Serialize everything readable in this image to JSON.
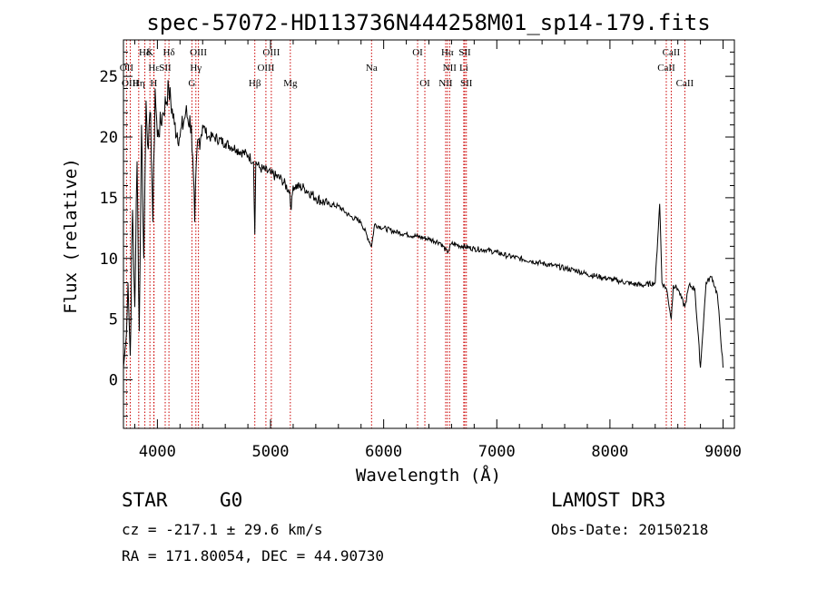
{
  "chart_data": {
    "type": "line",
    "title": "spec-57072-HD113736N444258M01_sp14-179.fits",
    "xlabel": "Wavelength (Å)",
    "ylabel": "Flux (relative)",
    "xlim": [
      3700,
      9100
    ],
    "ylim": [
      -4,
      28
    ],
    "xticks": [
      4000,
      5000,
      6000,
      7000,
      8000,
      9000
    ],
    "yticks": [
      0,
      5,
      10,
      15,
      20,
      25
    ],
    "grid": false,
    "series": [
      {
        "name": "spectrum",
        "x": [
          3700,
          3720,
          3740,
          3760,
          3780,
          3800,
          3820,
          3840,
          3860,
          3880,
          3900,
          3920,
          3940,
          3960,
          3980,
          4000,
          4050,
          4100,
          4150,
          4200,
          4250,
          4300,
          4330,
          4350,
          4400,
          4450,
          4500,
          4600,
          4700,
          4800,
          4850,
          4861,
          4870,
          4900,
          5000,
          5100,
          5170,
          5183,
          5200,
          5300,
          5400,
          5500,
          5600,
          5700,
          5800,
          5893,
          5920,
          6000,
          6100,
          6200,
          6300,
          6400,
          6500,
          6563,
          6600,
          6700,
          6800,
          6900,
          7000,
          7100,
          7200,
          7300,
          7400,
          7500,
          7600,
          7700,
          7800,
          7900,
          8000,
          8100,
          8200,
          8300,
          8400,
          8440,
          8460,
          8500,
          8542,
          8560,
          8600,
          8662,
          8700,
          8750,
          8800,
          8850,
          8900,
          8950,
          9000
        ],
        "y": [
          1,
          3,
          8,
          2,
          14,
          6,
          18,
          4,
          21,
          10,
          23,
          19,
          22,
          13,
          24,
          20,
          22,
          24,
          21,
          20,
          22,
          21,
          13,
          19,
          21,
          20,
          20,
          19.5,
          19,
          18.5,
          18,
          12,
          18,
          17.5,
          17,
          16.5,
          15.5,
          14,
          16,
          15.8,
          15,
          14.5,
          14.3,
          13.5,
          13,
          11,
          12.8,
          12.5,
          12.2,
          12,
          11.8,
          11.6,
          11.3,
          10.5,
          11.2,
          11,
          10.8,
          10.7,
          10.5,
          10.2,
          10,
          9.8,
          9.6,
          9.4,
          9.2,
          9,
          8.7,
          8.5,
          8.3,
          8.1,
          7.9,
          7.8,
          8,
          14.5,
          8,
          7.5,
          5,
          7.8,
          7.5,
          6,
          7.8,
          7.5,
          1,
          8,
          8.5,
          7,
          1
        ]
      }
    ],
    "lines": [
      {
        "label": "Hδ",
        "x": 3889,
        "row": 1
      },
      {
        "label": "OII",
        "x": 3727,
        "row": 2
      },
      {
        "label": "OIII",
        "x": 3760,
        "row": 3
      },
      {
        "label": "K",
        "x": 3934,
        "row": 1
      },
      {
        "label": "Hε",
        "x": 3970,
        "row": 2
      },
      {
        "label": "Hη",
        "x": 3835,
        "row": 3
      },
      {
        "label": "Hδ",
        "x": 4102,
        "row": 1
      },
      {
        "label": "SII",
        "x": 4069,
        "row": 2
      },
      {
        "label": "H",
        "x": 3968,
        "row": 3
      },
      {
        "label": "OIII",
        "x": 4363,
        "row": 1
      },
      {
        "label": "Hγ",
        "x": 4340,
        "row": 2
      },
      {
        "label": "G",
        "x": 4305,
        "row": 3
      },
      {
        "label": "OIII",
        "x": 5007,
        "row": 1
      },
      {
        "label": "OIII",
        "x": 4959,
        "row": 2
      },
      {
        "label": "Hβ",
        "x": 4861,
        "row": 3
      },
      {
        "label": "Mg",
        "x": 5175,
        "row": 3
      },
      {
        "label": "Na",
        "x": 5893,
        "row": 2
      },
      {
        "label": "OI",
        "x": 6300,
        "row": 1
      },
      {
        "label": "OI",
        "x": 6364,
        "row": 3
      },
      {
        "label": "Hα",
        "x": 6563,
        "row": 1
      },
      {
        "label": "SII",
        "x": 6717,
        "row": 1
      },
      {
        "label": "NII",
        "x": 6583,
        "row": 2
      },
      {
        "label": "Li",
        "x": 6708,
        "row": 2
      },
      {
        "label": "NII",
        "x": 6548,
        "row": 3
      },
      {
        "label": "SII",
        "x": 6731,
        "row": 3
      },
      {
        "label": "CaII",
        "x": 8542,
        "row": 1
      },
      {
        "label": "CaII",
        "x": 8498,
        "row": 2
      },
      {
        "label": "CaII",
        "x": 8662,
        "row": 3
      }
    ]
  },
  "info": {
    "object_type": "STAR",
    "subclass": "G0",
    "survey": "LAMOST DR3",
    "cz": "cz = -217.1 ± 29.6 km/s",
    "obs_date": "Obs-Date: 20150218",
    "coords": "RA = 171.80054, DEC =  44.90730"
  },
  "colors": {
    "spectrum": "#000000",
    "line_marker": "#cc0000"
  }
}
